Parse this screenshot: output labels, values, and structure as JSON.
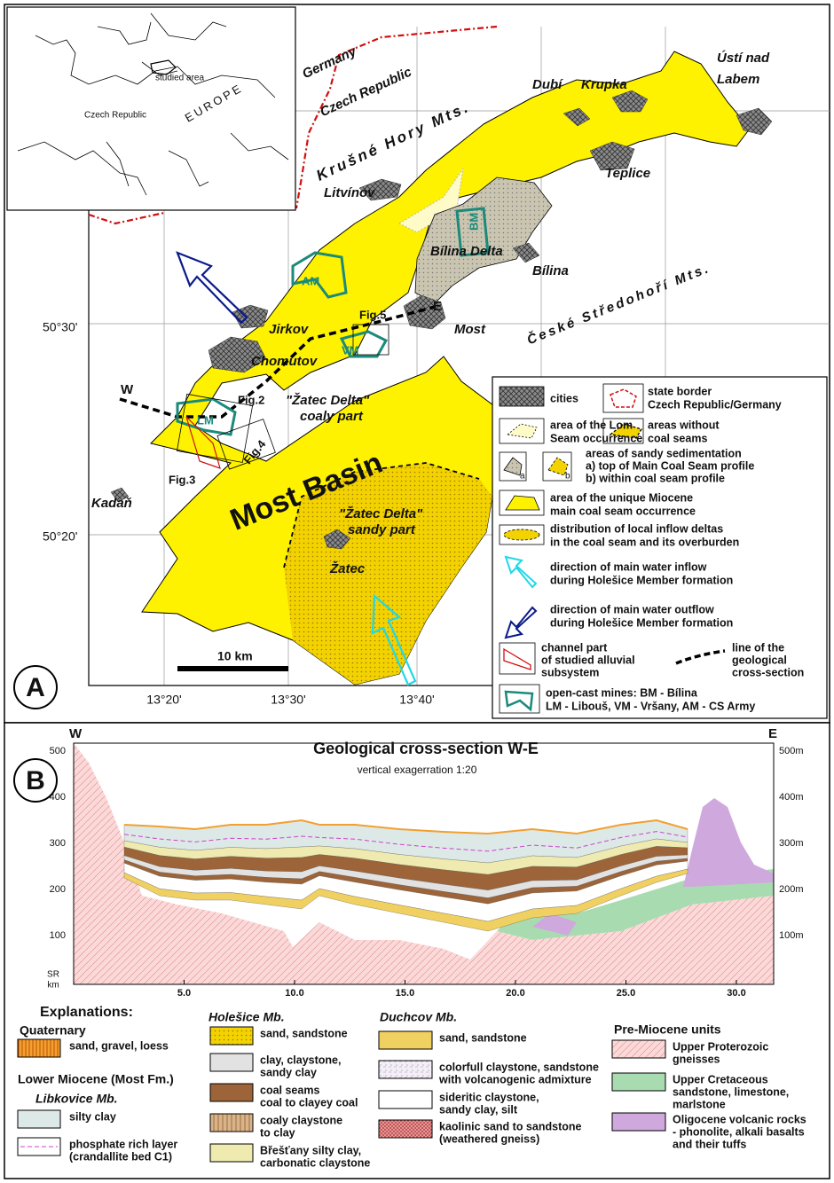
{
  "panel_a": {
    "label": "A",
    "inset": {
      "studied_area": "studied area",
      "country": "Czech Republic",
      "continent": "EUROPE"
    },
    "places": {
      "germany": "Germany",
      "czech_republic": "Czech Republic",
      "krusne_hory": "Krušné Hory Mts.",
      "dubi": "Dubí",
      "krupka": "Krupka",
      "usti": [
        "Ústí nad",
        "Labem"
      ],
      "teplice": "Teplice",
      "litvinov": "Litvínov",
      "bilina_delta": "Bílina Delta",
      "bilina": "Bílina",
      "ceske_stredohori": "České Středohoří Mts.",
      "jirkov": "Jirkov",
      "most": "Most",
      "chomutov": "Chomutov",
      "kadan": "Kadaň",
      "zatec": "Žatec",
      "most_basin": "Most Basin",
      "zatec_coaly": [
        "\"Žatec Delta\"",
        "coaly part"
      ],
      "zatec_sandy": [
        "\"Žatec Delta\"",
        "sandy part"
      ]
    },
    "mines": {
      "bm": "BM",
      "am": "AM",
      "vm": "VM",
      "lm": "LM"
    },
    "figures": {
      "fig2": "Fig.2",
      "fig3": "Fig.3",
      "fig4": "Fig.4",
      "fig5": "Fig.5"
    },
    "section_ends": {
      "west": "W",
      "east": "E"
    },
    "latitudes": [
      "50°30'",
      "50°20'"
    ],
    "longitudes": [
      "13°20'",
      "13°30'",
      "13°40'"
    ],
    "scale_bar": "10 km",
    "legend": {
      "cities": "cities",
      "state_border": [
        "state border",
        "Czech Republic/Germany"
      ],
      "lom_seam": [
        "area of the Lom",
        "Seam occurrence"
      ],
      "no_coal": [
        "areas without",
        "coal seams"
      ],
      "sandy": [
        "areas of sandy sedimentation",
        "a) top of Main Coal Seam profile",
        "b) within coal seam profile"
      ],
      "sandy_a": "a",
      "sandy_b": "b",
      "unique": [
        "area of the unique Miocene",
        "main coal seam occurrence"
      ],
      "deltas": [
        "distribution of local inflow deltas",
        "in the coal seam and its overburden"
      ],
      "inflow": [
        "direction of main water inflow",
        "during Holešice Member formation"
      ],
      "outflow": [
        "direction of main water outflow",
        "during Holešice Member formation"
      ],
      "channel": [
        "channel part",
        "of studied alluvial",
        "subsystem"
      ],
      "section_line": [
        "line of the",
        "geological",
        "cross-section"
      ],
      "mines": [
        "open-cast mines:  BM - Bílina",
        "LM - Libouš, VM - Vršany, AM - CS Army"
      ]
    }
  },
  "panel_b": {
    "label": "B",
    "title": "Geological cross-section W-E",
    "subtitle": "vertical exagerration 1:20",
    "west": "W",
    "east": "E",
    "left_axis": [
      "500",
      "400",
      "300",
      "200",
      "100"
    ],
    "left_axis_unit": [
      "SR",
      "km"
    ],
    "right_axis": [
      "500m",
      "400m",
      "300m",
      "200m",
      "100m"
    ],
    "x_axis": [
      "5.0",
      "10.0",
      "15.0",
      "20.0",
      "25.0",
      "30.0"
    ],
    "explanations": {
      "heading": "Explanations:",
      "lower_miocene": "Lower Miocene (Most Fm.)",
      "quaternary": {
        "heading": "Quaternary",
        "items": [
          [
            "sand, gravel, loess"
          ]
        ]
      },
      "libkovice": {
        "heading": "Libkovice Mb.",
        "items": [
          [
            "silty clay"
          ],
          [
            "phosphate rich layer",
            "(crandallite bed C1)"
          ]
        ]
      },
      "holesice": {
        "heading": "Holešice Mb.",
        "items": [
          [
            "sand, sandstone"
          ],
          [
            "clay, claystone,",
            "sandy clay"
          ],
          [
            "coal seams",
            "coal to clayey coal"
          ],
          [
            "coaly claystone",
            "to clay"
          ],
          [
            "Břešťany silty clay,",
            "carbonatic claystone"
          ]
        ]
      },
      "duchcov": {
        "heading": "Duchcov Mb.",
        "items": [
          [
            "sand, sandstone"
          ],
          [
            "colorfull claystone, sandstone",
            "with volcanogenic admixture"
          ],
          [
            "sideritic claystone,",
            "sandy clay, silt"
          ],
          [
            "kaolinic sand to sandstone",
            "(weathered gneiss)"
          ]
        ]
      },
      "pre_miocene": {
        "heading": "Pre-Miocene units",
        "items": [
          [
            "Upper Proterozoic",
            "gneisses"
          ],
          [
            "Upper Cretaceous",
            "sandstone, limestone,",
            "marlstone"
          ],
          [
            "Oligocene volcanic rocks",
            "- phonolite, alkali basalts",
            "and their tuffs"
          ]
        ]
      }
    }
  }
}
